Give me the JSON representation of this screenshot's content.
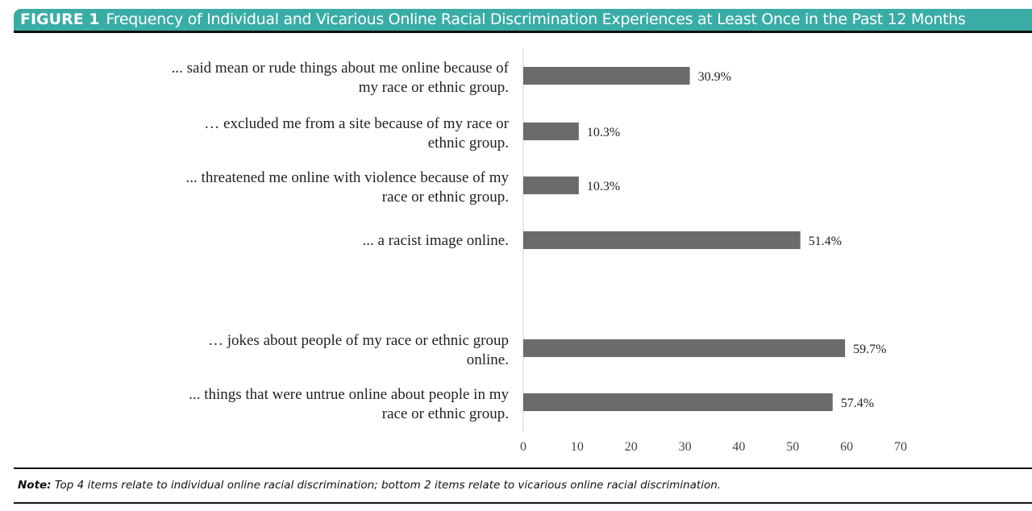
{
  "figure_label": "FIGURE 1",
  "colors": {
    "header": "#3aaca6",
    "bar": "#6b6b6b"
  },
  "chart_data": {
    "type": "bar",
    "orientation": "horizontal",
    "title": "Frequency of Individual and Vicarious Online Racial Discrimination Experiences at Least Once in the Past 12 Months",
    "categories": [
      [
        "... said mean or rude things about me online because of",
        "my race or ethnic group."
      ],
      [
        "… excluded me from a site because of my race or",
        "ethnic group."
      ],
      [
        "... threatened me online with violence because of my",
        "race or ethnic group."
      ],
      [
        "... a racist image online."
      ],
      [
        "… jokes about people of my race or ethnic group",
        "online."
      ],
      [
        "... things that were untrue online about people in my",
        "race or ethnic group."
      ]
    ],
    "values": [
      30.9,
      10.3,
      10.3,
      51.4,
      59.7,
      57.4
    ],
    "data_labels": [
      "30.9%",
      "10.3%",
      "10.3%",
      "51.4%",
      "59.7%",
      "57.4%"
    ],
    "xlim": [
      0,
      70
    ],
    "xticks": [
      "0",
      "10",
      "20",
      "30",
      "40",
      "50",
      "60",
      "70"
    ],
    "grid": false,
    "legend": "none"
  },
  "note": {
    "label": "Note:",
    "text": " Top 4 items relate to individual online racial discrimination; bottom 2 items relate to vicarious online racial discrimination."
  }
}
